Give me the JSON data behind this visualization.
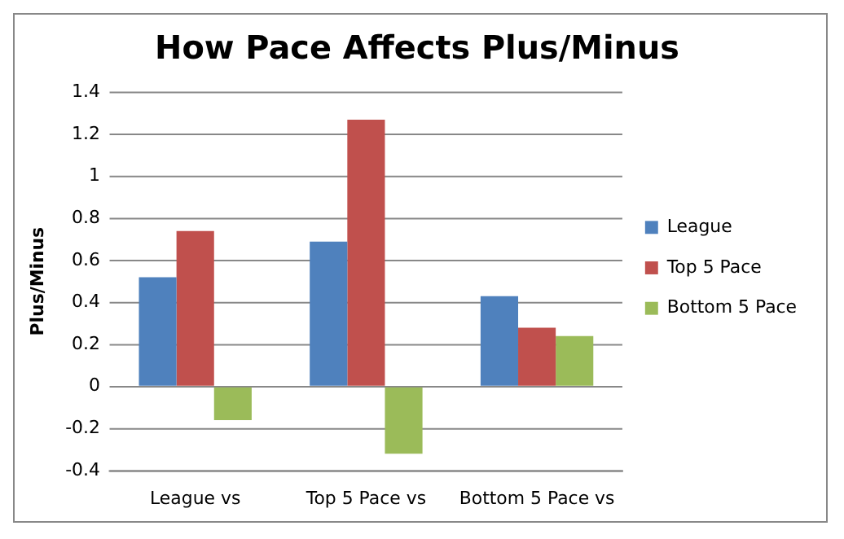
{
  "chart_data": {
    "type": "bar",
    "title": "How Pace Affects Plus/Minus",
    "ylabel": "Plus/Minus",
    "categories": [
      "League vs",
      "Top 5 Pace vs",
      "Bottom 5 Pace vs"
    ],
    "series": [
      {
        "name": "League",
        "color": "#4f81bd",
        "values": [
          0.52,
          0.69,
          0.43
        ]
      },
      {
        "name": "Top 5 Pace",
        "color": "#c0504d",
        "values": [
          0.74,
          1.27,
          0.28
        ]
      },
      {
        "name": "Bottom 5 Pace",
        "color": "#9bbb59",
        "values": [
          -0.16,
          -0.32,
          0.24
        ]
      }
    ],
    "ylim": [
      -0.4,
      1.4
    ],
    "yticks": [
      -0.4,
      -0.2,
      0,
      0.2,
      0.4,
      0.6,
      0.8,
      1,
      1.2,
      1.4
    ],
    "grid": "y",
    "legend": "right"
  }
}
